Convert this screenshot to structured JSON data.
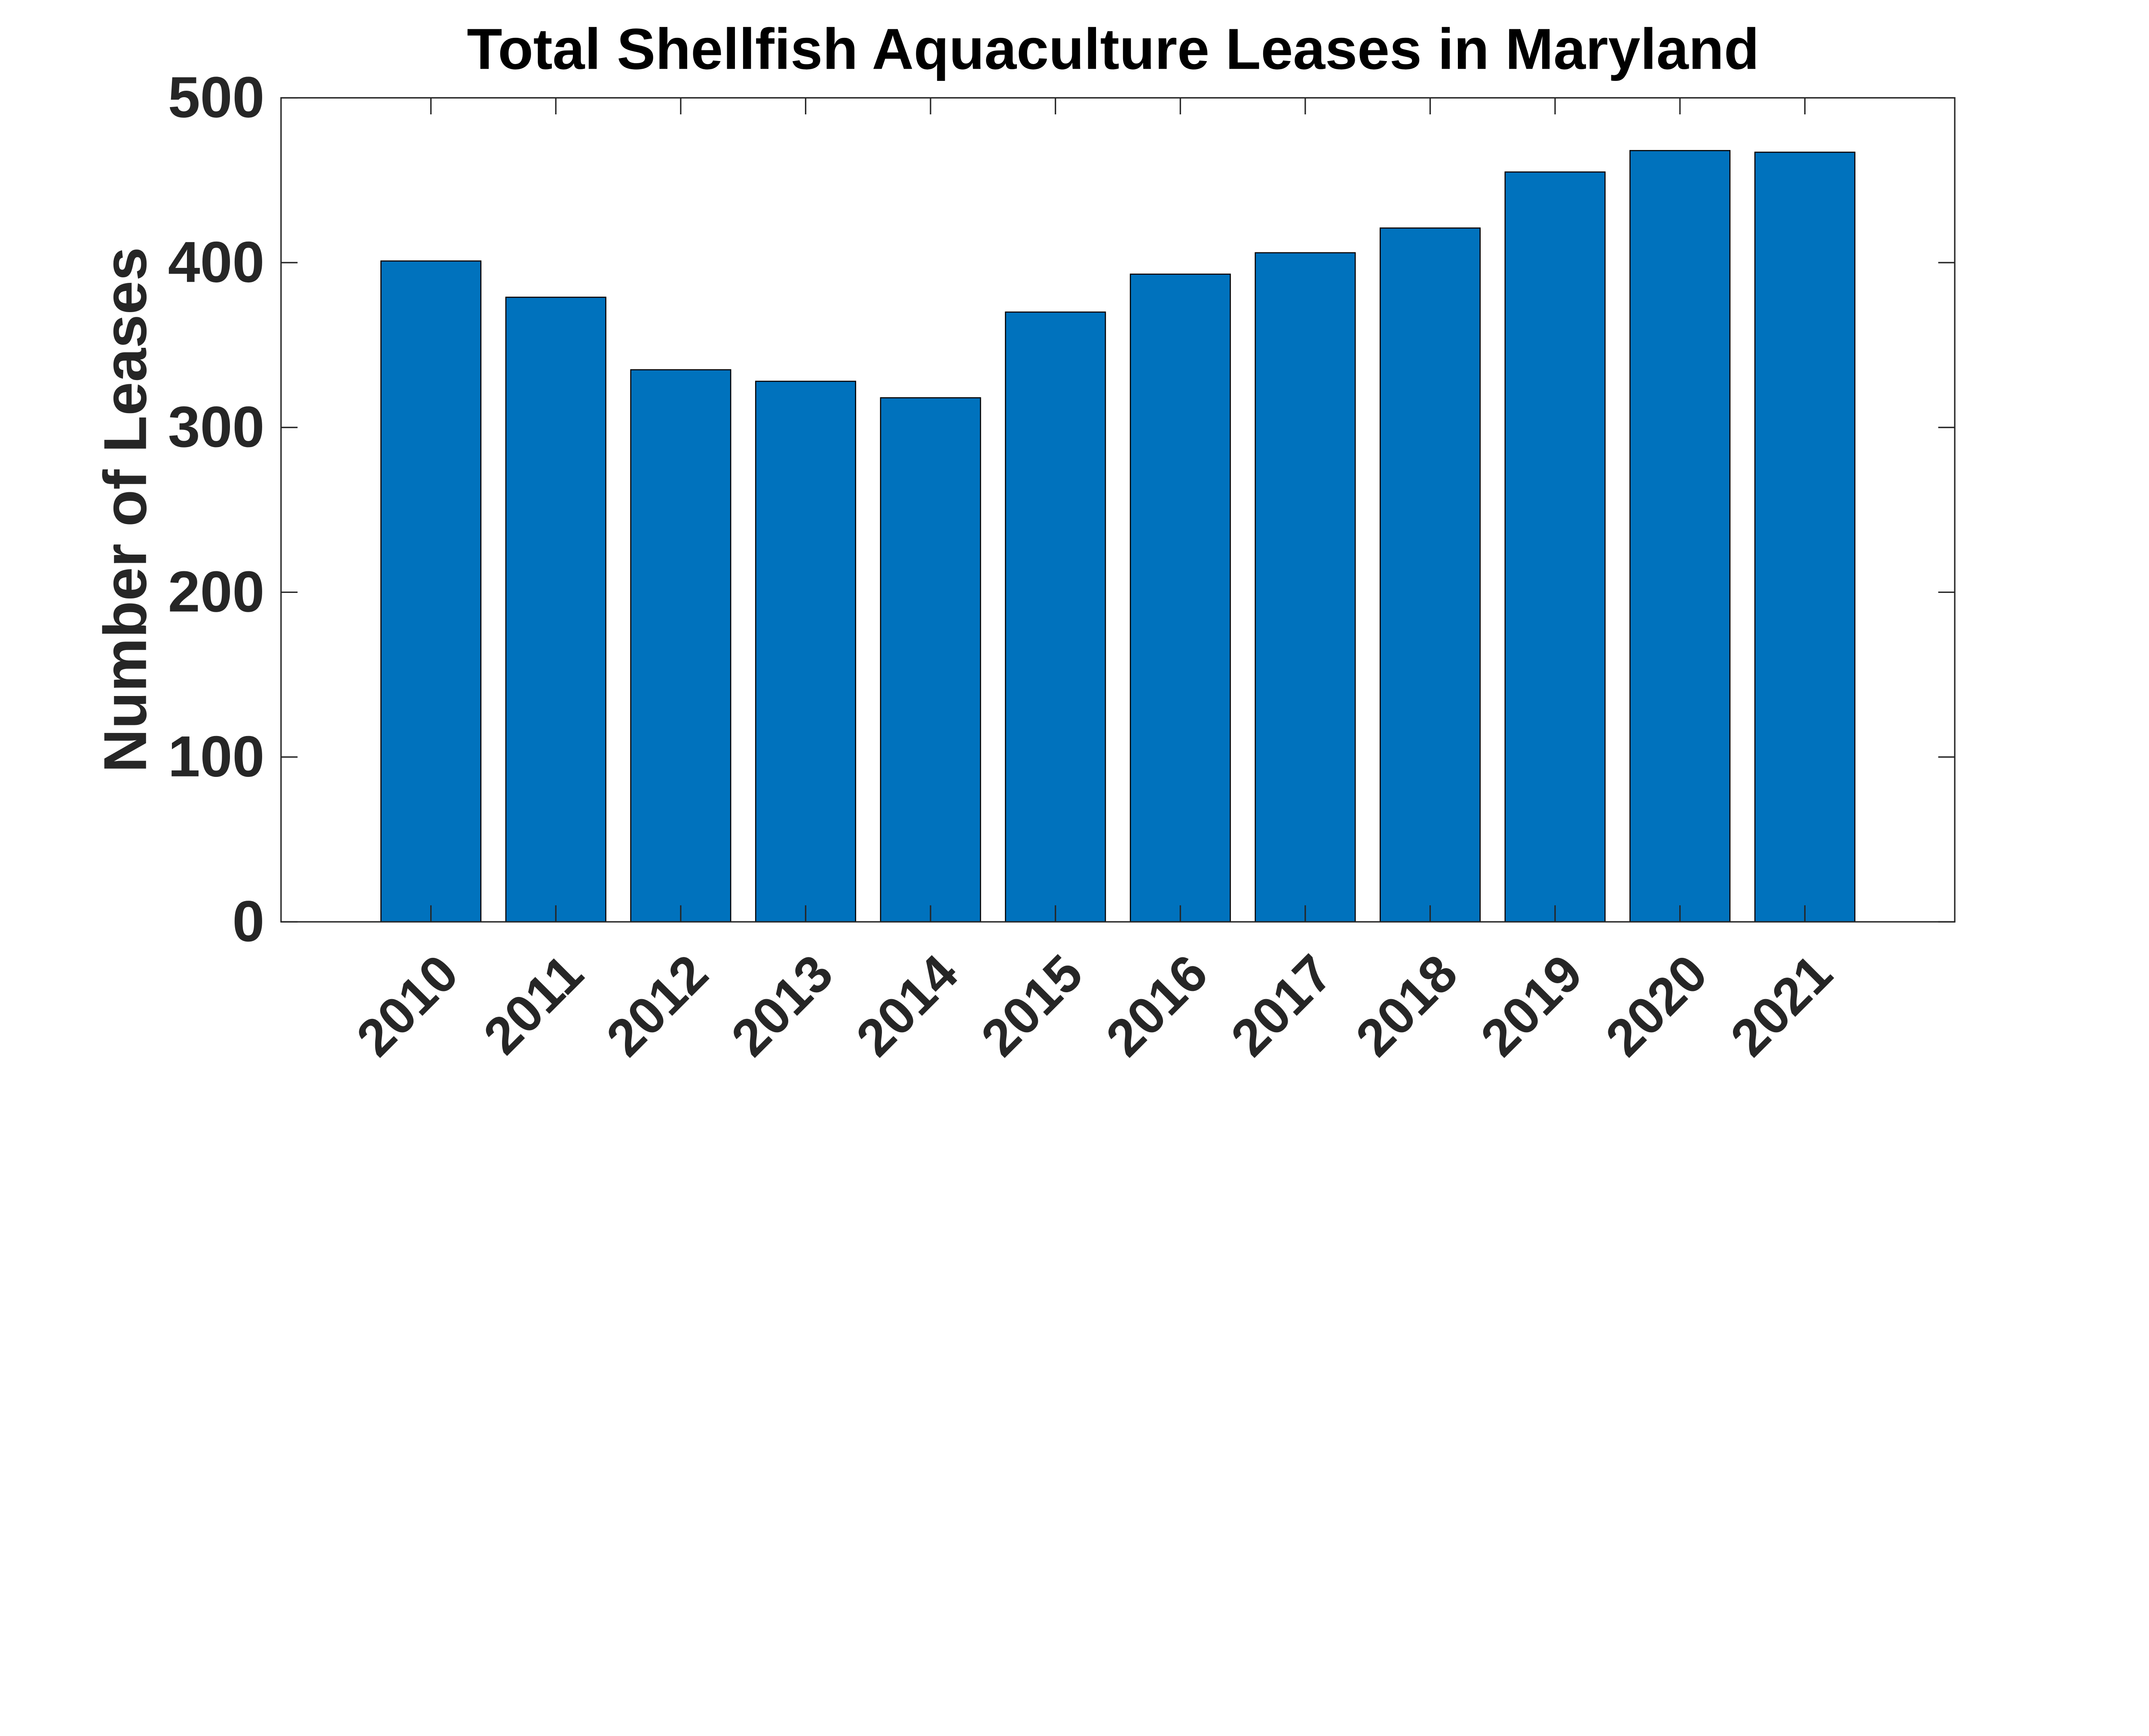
{
  "chart_data": {
    "type": "bar",
    "title": "Total Shellfish Aquaculture Leases in Maryland",
    "xlabel": "",
    "ylabel": "Number of Leases",
    "categories": [
      "2010",
      "2011",
      "2012",
      "2013",
      "2014",
      "2015",
      "2016",
      "2017",
      "2018",
      "2019",
      "2020",
      "2021"
    ],
    "values": [
      401,
      379,
      335,
      328,
      318,
      370,
      393,
      406,
      421,
      455,
      468,
      467
    ],
    "ylim": [
      0,
      500
    ],
    "yticks": [
      "0",
      "100",
      "200",
      "300",
      "400",
      "500"
    ],
    "grid": false,
    "bar_color": "#0072BD"
  }
}
